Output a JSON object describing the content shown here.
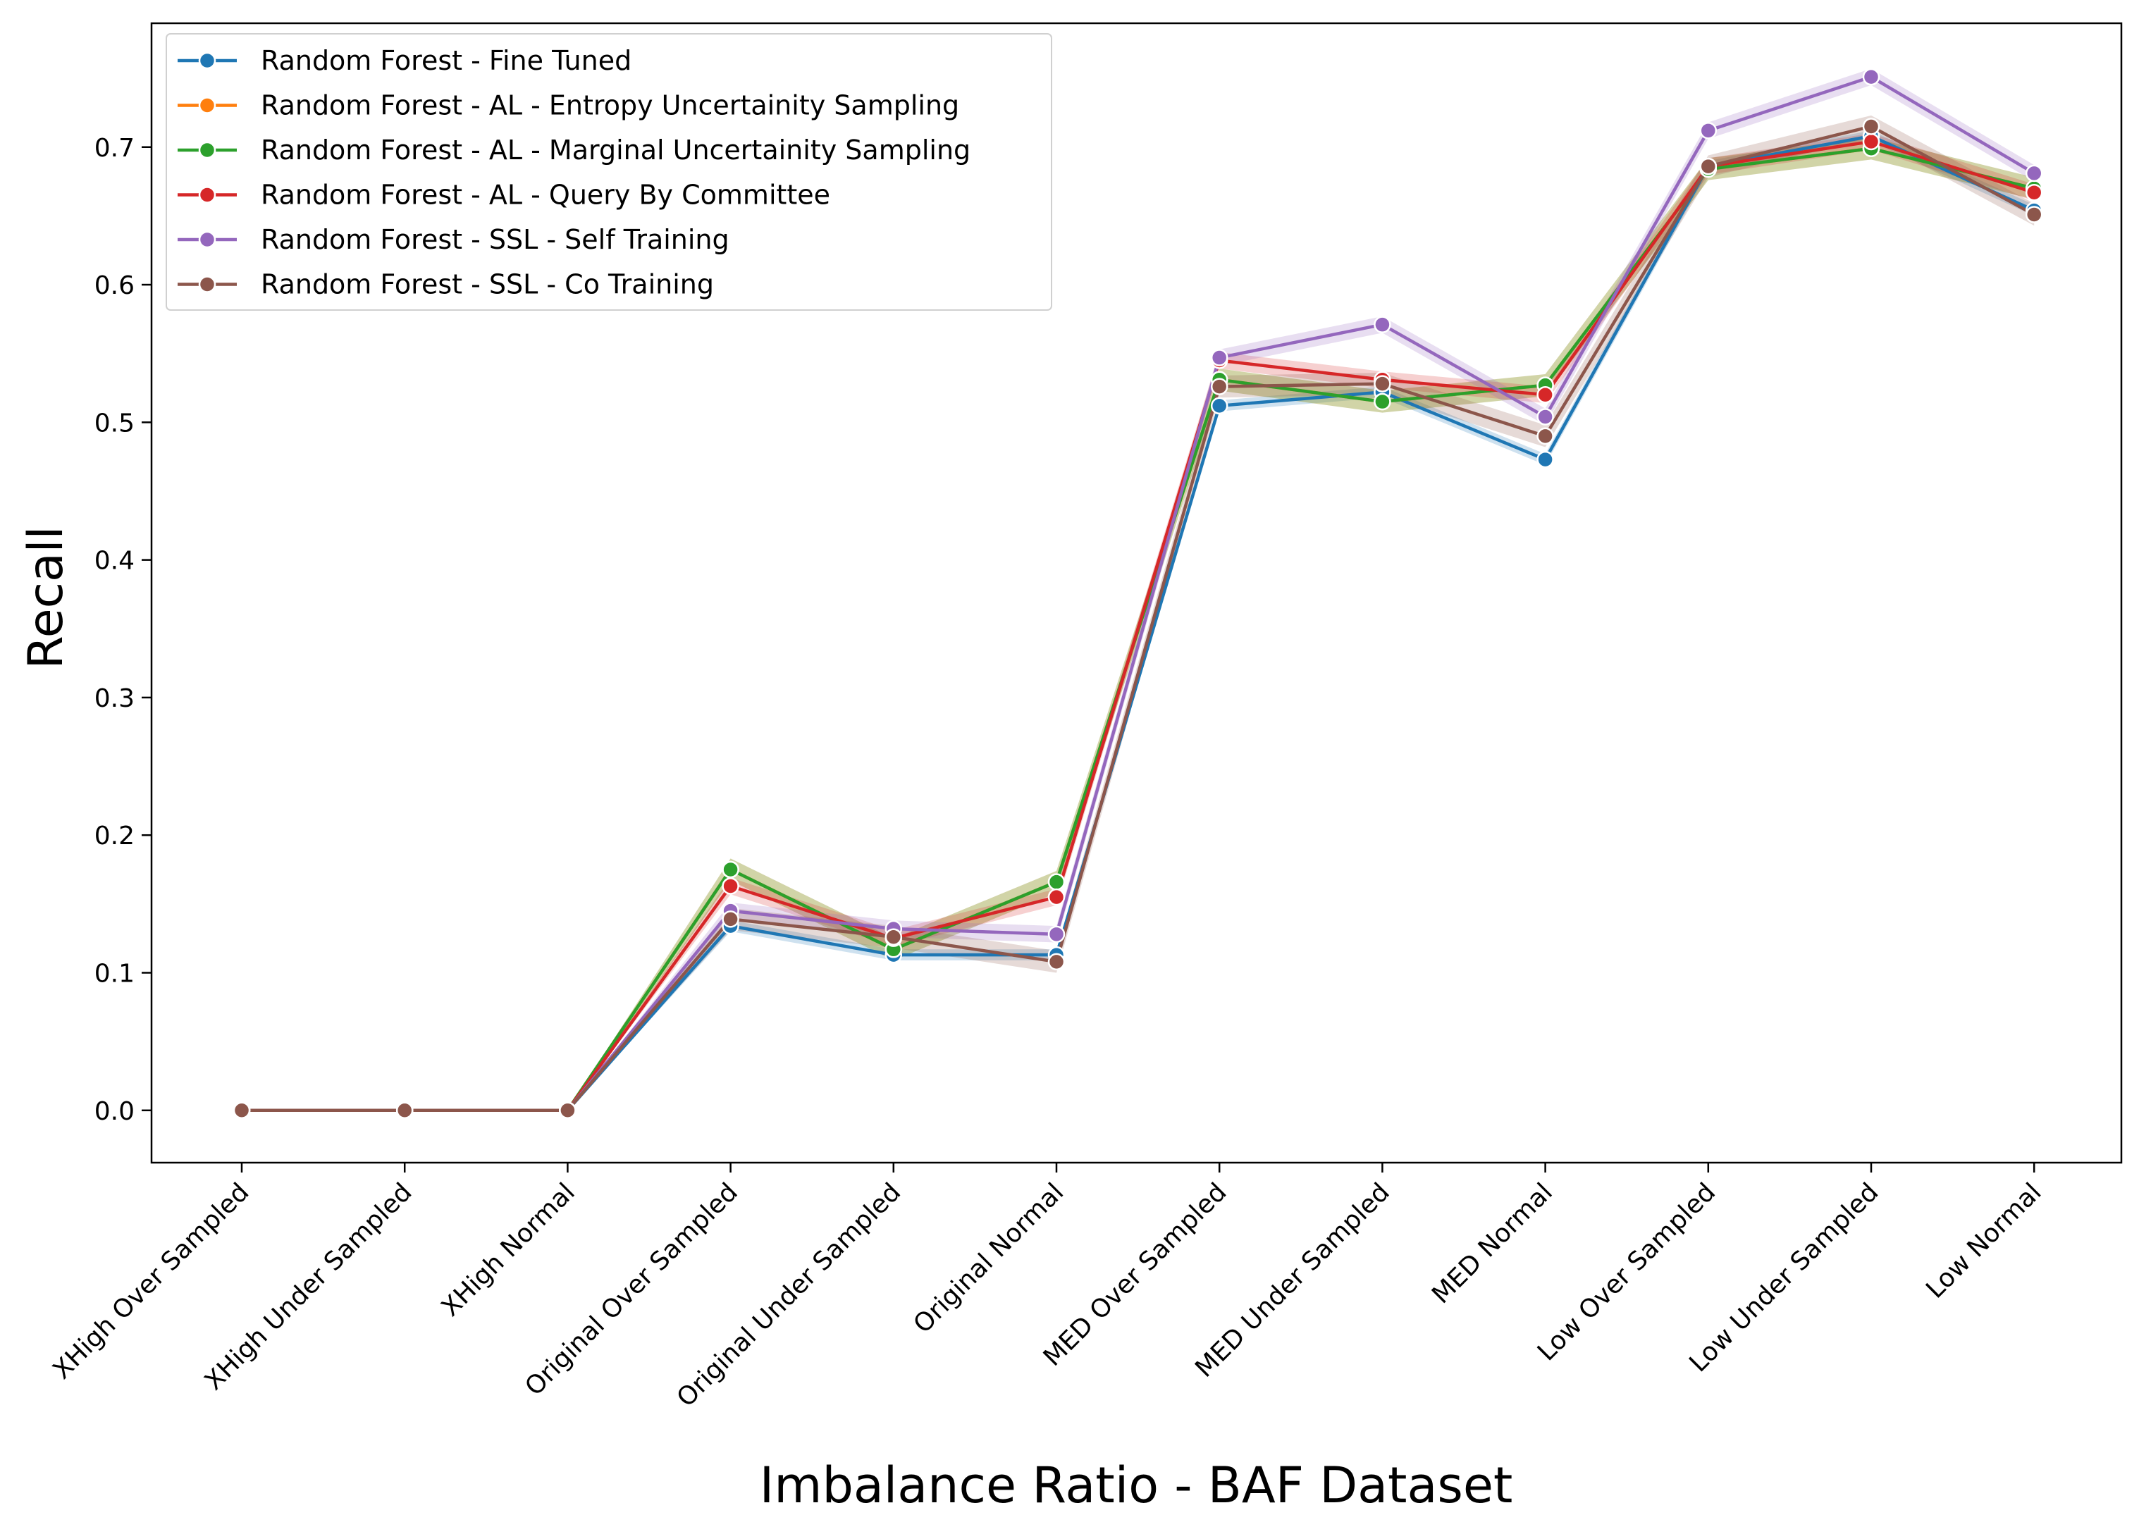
{
  "chart_data": {
    "type": "line",
    "xlabel": "Imbalance Ratio - BAF Dataset",
    "ylabel": "Recall",
    "ylim": [
      -0.038,
      0.79
    ],
    "yticks": [
      "0.0",
      "0.1",
      "0.2",
      "0.3",
      "0.4",
      "0.5",
      "0.6",
      "0.7"
    ],
    "grid": false,
    "legend_position": "top-left",
    "categories": [
      "XHigh Over Sampled",
      "XHigh Under Sampled",
      "XHigh Normal",
      "Original Over Sampled",
      "Original Under Sampled",
      "Original Normal",
      "MED Over Sampled",
      "MED Under Sampled",
      "MED Normal",
      "Low Over Sampled",
      "Low Under Sampled",
      "Low Normal"
    ],
    "series": [
      {
        "name": "Random Forest - Fine Tuned",
        "color": "#1f77b4",
        "values": [
          0,
          0,
          0,
          0.134,
          0.113,
          0.113,
          0.512,
          0.522,
          0.473,
          0.686,
          0.708,
          0.654
        ],
        "band": 0.004
      },
      {
        "name": "Random Forest - AL - Entropy Uncertainity Sampling",
        "color": "#ff7f0e",
        "values": [
          0,
          0,
          0,
          0.175,
          0.117,
          0.166,
          0.531,
          0.515,
          0.527,
          0.684,
          0.699,
          0.67
        ],
        "band": 0.008
      },
      {
        "name": "Random Forest - AL - Marginal Uncertainity Sampling",
        "color": "#2ca02c",
        "values": [
          0,
          0,
          0,
          0.175,
          0.117,
          0.166,
          0.531,
          0.515,
          0.527,
          0.684,
          0.699,
          0.67
        ],
        "band": 0.008
      },
      {
        "name": "Random Forest - AL - Query By Committee",
        "color": "#d62728",
        "values": [
          0,
          0,
          0,
          0.163,
          0.125,
          0.155,
          0.545,
          0.531,
          0.52,
          0.686,
          0.704,
          0.667
        ],
        "band": 0.006
      },
      {
        "name": "Random Forest - SSL - Self Training",
        "color": "#9467bd",
        "values": [
          0,
          0,
          0,
          0.145,
          0.132,
          0.128,
          0.547,
          0.571,
          0.504,
          0.712,
          0.751,
          0.681
        ],
        "band": 0.006
      },
      {
        "name": "Random Forest - SSL - Co Training",
        "color": "#8c564b",
        "values": [
          0,
          0,
          0,
          0.139,
          0.126,
          0.108,
          0.526,
          0.528,
          0.49,
          0.686,
          0.715,
          0.651
        ],
        "band": 0.008
      }
    ]
  }
}
